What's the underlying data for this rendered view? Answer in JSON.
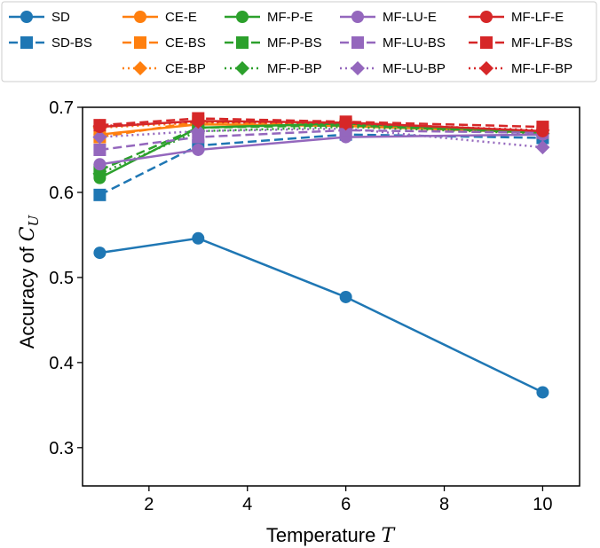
{
  "chart_data": {
    "type": "line",
    "xlabel": "Temperature",
    "xlabel_math": "T",
    "ylabel": "Accuracy of",
    "ylabel_math": "C",
    "ylabel_math_sub": "U",
    "xlim": [
      0.65,
      10.75
    ],
    "ylim": [
      0.255,
      0.7
    ],
    "xticks": [
      2,
      4,
      6,
      8,
      10
    ],
    "yticks": [
      0.3,
      0.4,
      0.5,
      0.6,
      0.7
    ],
    "xtick_labels": [
      "2",
      "4",
      "6",
      "8",
      "10"
    ],
    "ytick_labels": [
      "0.3",
      "0.4",
      "0.5",
      "0.6",
      "0.7"
    ],
    "grid": false,
    "legend_position": "top, outside plot area (5 columns)",
    "x": [
      1,
      3,
      6,
      10
    ],
    "series": [
      {
        "name": "SD",
        "color": "#1f77b4",
        "line": "solid",
        "marker": "circle",
        "values": [
          0.529,
          0.546,
          0.477,
          0.365
        ]
      },
      {
        "name": "SD-BS",
        "color": "#1f77b4",
        "line": "dashed",
        "marker": "square",
        "values": [
          0.597,
          0.655,
          0.668,
          0.664
        ]
      },
      {
        "name": "CE-E",
        "color": "#ff7f0e",
        "line": "solid",
        "marker": "circle",
        "values": [
          0.668,
          0.68,
          0.678,
          0.67
        ]
      },
      {
        "name": "CE-BS",
        "color": "#ff7f0e",
        "line": "dashed",
        "marker": "square",
        "values": [
          0.665,
          0.683,
          0.68,
          0.672
        ]
      },
      {
        "name": "CE-BP",
        "color": "#ff7f0e",
        "line": "dotted",
        "marker": "diamond",
        "values": [
          0.676,
          0.682,
          0.679,
          0.673
        ]
      },
      {
        "name": "MF-P-E",
        "color": "#2ca02c",
        "line": "solid",
        "marker": "circle",
        "values": [
          0.617,
          0.676,
          0.681,
          0.671
        ]
      },
      {
        "name": "MF-P-BS",
        "color": "#2ca02c",
        "line": "dashed",
        "marker": "square",
        "values": [
          0.626,
          0.676,
          0.679,
          0.67
        ]
      },
      {
        "name": "MF-P-BP",
        "color": "#2ca02c",
        "line": "dotted",
        "marker": "diamond",
        "values": [
          0.622,
          0.672,
          0.677,
          0.669
        ]
      },
      {
        "name": "MF-LU-E",
        "color": "#9467bd",
        "line": "solid",
        "marker": "circle",
        "values": [
          0.633,
          0.65,
          0.665,
          0.668
        ]
      },
      {
        "name": "MF-LU-BS",
        "color": "#9467bd",
        "line": "dashed",
        "marker": "square",
        "values": [
          0.65,
          0.665,
          0.673,
          0.67
        ]
      },
      {
        "name": "MF-LU-BP",
        "color": "#9467bd",
        "line": "dotted",
        "marker": "diamond",
        "values": [
          0.665,
          0.672,
          0.675,
          0.653
        ]
      },
      {
        "name": "MF-LF-E",
        "color": "#d62728",
        "line": "solid",
        "marker": "circle",
        "values": [
          0.677,
          0.684,
          0.682,
          0.672
        ]
      },
      {
        "name": "MF-LF-BS",
        "color": "#d62728",
        "line": "dashed",
        "marker": "square",
        "values": [
          0.679,
          0.687,
          0.683,
          0.677
        ]
      },
      {
        "name": "MF-LF-BP",
        "color": "#d62728",
        "line": "dotted",
        "marker": "diamond",
        "values": [
          0.678,
          0.683,
          0.681,
          0.673
        ]
      }
    ]
  }
}
